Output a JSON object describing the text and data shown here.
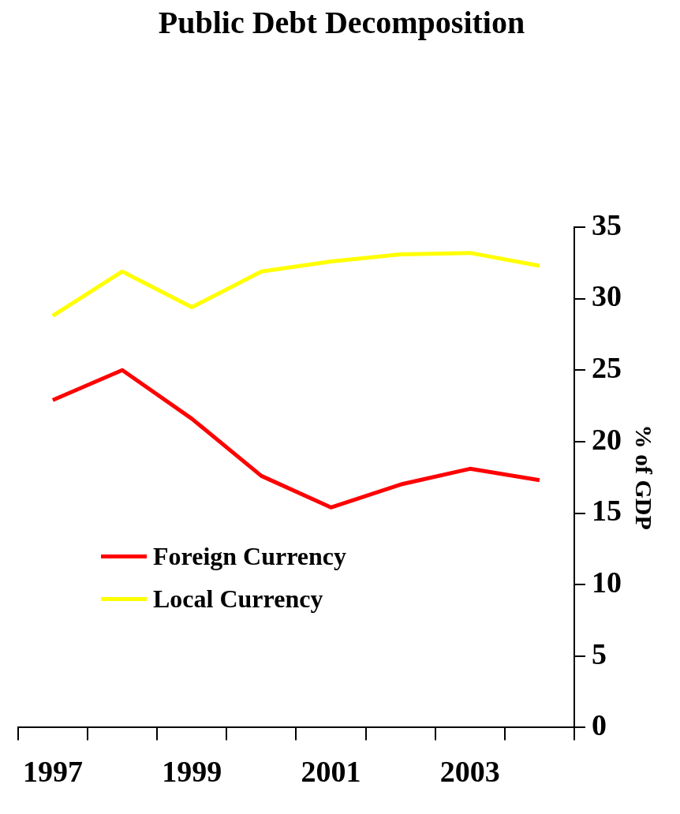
{
  "chart_data": {
    "type": "line",
    "title": "Public Debt Decomposition",
    "ylabel": "% of GDP",
    "categories": [
      "1997",
      null,
      "1999",
      null,
      "2001",
      null,
      "2003",
      null
    ],
    "series": [
      {
        "name": "Foreign Currency",
        "color": "#ff0000",
        "values": [
          22.9,
          25.0,
          21.6,
          17.6,
          15.4,
          17.0,
          18.1,
          17.3
        ]
      },
      {
        "name": "Local Currency",
        "color": "#ffff00",
        "values": [
          28.8,
          31.9,
          29.4,
          31.9,
          32.6,
          33.1,
          33.2,
          32.3
        ]
      }
    ],
    "ylim": [
      0,
      35
    ],
    "yticks": [
      0,
      5,
      10,
      15,
      20,
      25,
      30,
      35
    ],
    "grid": false,
    "legend": "left",
    "marker": "none",
    "line_style": "solid"
  }
}
